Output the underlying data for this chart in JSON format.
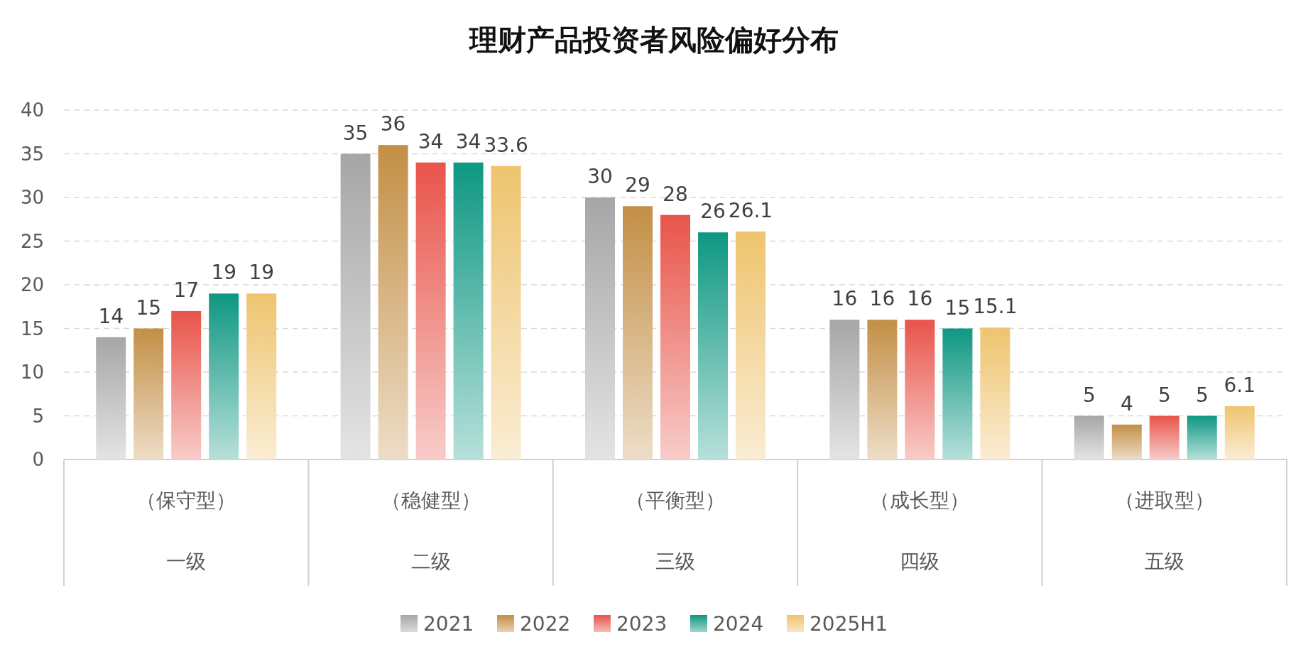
{
  "chart_data": {
    "type": "bar",
    "title": "理财产品投资者风险偏好分布",
    "categories": [
      "（保守型）一级",
      "（稳健型）二级",
      "（平衡型）三级",
      "（成长型）四级",
      "（进取型）五级"
    ],
    "series": [
      {
        "name": "2021",
        "color": "#a6a6a6",
        "values": [
          14,
          35,
          30,
          16,
          5
        ]
      },
      {
        "name": "2022",
        "color": "#c38f45",
        "values": [
          15,
          36,
          29,
          16,
          4
        ]
      },
      {
        "name": "2023",
        "color": "#e8544a",
        "values": [
          17,
          34,
          28,
          16,
          5
        ]
      },
      {
        "name": "2024",
        "color": "#0e9782",
        "values": [
          19,
          34,
          26,
          15,
          5
        ]
      },
      {
        "name": "2025H1",
        "color": "#eec46e",
        "values": [
          19,
          33.6,
          26.1,
          15.1,
          6.1
        ]
      }
    ],
    "ylim": [
      0,
      40
    ],
    "yticks": [
      0,
      5,
      10,
      15,
      20,
      25,
      30,
      35,
      40
    ],
    "grid": "y",
    "legend": "bottom",
    "data_labels": true
  }
}
